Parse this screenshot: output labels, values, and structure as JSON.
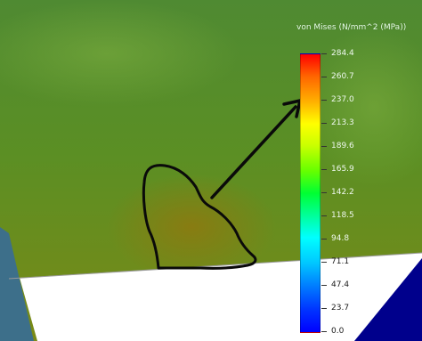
{
  "legend": {
    "title": "von Mises (N/mm^2 (MPa))",
    "colors": {
      "max": "#ff0000",
      "high": "#ffb000",
      "mid_high": "#ffff00",
      "mid": "#00ff33",
      "mid_low": "#00ffff",
      "low": "#0080ff",
      "min": "#0000ff"
    },
    "ticks": [
      "284.4",
      "260.7",
      "237.0",
      "213.3",
      "189.6",
      "165.9",
      "142.2",
      "118.5",
      "94.8",
      "71.1",
      "47.4",
      "23.7",
      "0.0"
    ]
  },
  "scene": {
    "model_color": "#5d8a1c",
    "floor_color": "#ffffff",
    "corner_color": "#00008c",
    "annotation": {
      "outline_shape": "freehand-loop",
      "arrow_direction": "up-right"
    }
  }
}
